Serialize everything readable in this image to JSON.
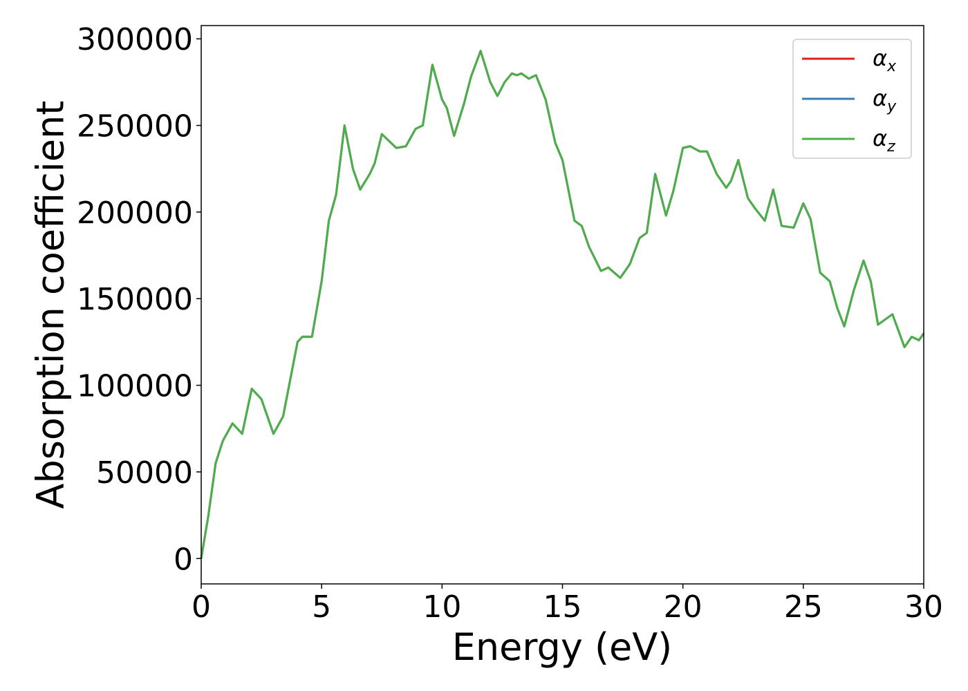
{
  "chart_data": {
    "type": "line",
    "x_label": "Energy (eV)",
    "y_label": "Absorption coefficient",
    "x": [
      0,
      0.3,
      0.6,
      0.9,
      1.3,
      1.7,
      2.1,
      2.5,
      3.0,
      3.4,
      4.0,
      4.2,
      4.6,
      5.0,
      5.3,
      5.6,
      5.95,
      6.3,
      6.6,
      7.0,
      7.2,
      7.5,
      7.8,
      8.1,
      8.5,
      8.9,
      9.2,
      9.6,
      10.0,
      10.2,
      10.5,
      10.9,
      11.2,
      11.6,
      12.0,
      12.3,
      12.6,
      12.9,
      13.1,
      13.3,
      13.6,
      13.9,
      14.3,
      14.7,
      15.0,
      15.5,
      15.8,
      16.1,
      16.6,
      16.9,
      17.4,
      17.8,
      18.2,
      18.5,
      18.85,
      19.3,
      19.6,
      20.0,
      20.3,
      20.7,
      21.0,
      21.4,
      21.8,
      22.0,
      22.3,
      22.7,
      23.0,
      23.4,
      23.75,
      24.1,
      24.6,
      25.0,
      25.3,
      25.7,
      26.1,
      26.4,
      26.7,
      27.1,
      27.5,
      27.8,
      28.1,
      28.7,
      29.2,
      29.5,
      29.8,
      30.0
    ],
    "series": [
      {
        "name": "αx",
        "color": "#e41a1c",
        "values": [
          0,
          25000,
          55000,
          68000,
          78000,
          72000,
          98000,
          92000,
          72000,
          82000,
          125000,
          128000,
          128000,
          160000,
          195000,
          210000,
          250000,
          225000,
          213000,
          222000,
          228000,
          245000,
          241000,
          237000,
          238000,
          248000,
          250000,
          285000,
          265000,
          260000,
          244000,
          262000,
          278000,
          293000,
          275000,
          267000,
          275000,
          280000,
          279000,
          280000,
          277000,
          279000,
          265000,
          240000,
          230000,
          195000,
          192000,
          180000,
          166000,
          168000,
          162000,
          170000,
          185000,
          188000,
          222000,
          198000,
          212000,
          237000,
          238000,
          235000,
          235000,
          222000,
          214000,
          218000,
          230000,
          208000,
          202000,
          195000,
          213000,
          192000,
          191000,
          205000,
          196000,
          165000,
          160000,
          145000,
          134000,
          155000,
          172000,
          160000,
          135000,
          141000,
          122000,
          128000,
          126000,
          130000
        ]
      },
      {
        "name": "αy",
        "color": "#377eb8",
        "values": [
          0,
          25000,
          55000,
          68000,
          78000,
          72000,
          98000,
          92000,
          72000,
          82000,
          125000,
          128000,
          128000,
          160000,
          195000,
          210000,
          250000,
          225000,
          213000,
          222000,
          228000,
          245000,
          241000,
          237000,
          238000,
          248000,
          250000,
          285000,
          265000,
          260000,
          244000,
          262000,
          278000,
          293000,
          275000,
          267000,
          275000,
          280000,
          279000,
          280000,
          277000,
          279000,
          265000,
          240000,
          230000,
          195000,
          192000,
          180000,
          166000,
          168000,
          162000,
          170000,
          185000,
          188000,
          222000,
          198000,
          212000,
          237000,
          238000,
          235000,
          235000,
          222000,
          214000,
          218000,
          230000,
          208000,
          202000,
          195000,
          213000,
          192000,
          191000,
          205000,
          196000,
          165000,
          160000,
          145000,
          134000,
          155000,
          172000,
          160000,
          135000,
          141000,
          122000,
          128000,
          126000,
          130000
        ]
      },
      {
        "name": "αz",
        "color": "#4daf4a",
        "values": [
          0,
          25000,
          55000,
          68000,
          78000,
          72000,
          98000,
          92000,
          72000,
          82000,
          125000,
          128000,
          128000,
          160000,
          195000,
          210000,
          250000,
          225000,
          213000,
          222000,
          228000,
          245000,
          241000,
          237000,
          238000,
          248000,
          250000,
          285000,
          265000,
          260000,
          244000,
          262000,
          278000,
          293000,
          275000,
          267000,
          275000,
          280000,
          279000,
          280000,
          277000,
          279000,
          265000,
          240000,
          230000,
          195000,
          192000,
          180000,
          166000,
          168000,
          162000,
          170000,
          185000,
          188000,
          222000,
          198000,
          212000,
          237000,
          238000,
          235000,
          235000,
          222000,
          214000,
          218000,
          230000,
          208000,
          202000,
          195000,
          213000,
          192000,
          191000,
          205000,
          196000,
          165000,
          160000,
          145000,
          134000,
          155000,
          172000,
          160000,
          135000,
          141000,
          122000,
          128000,
          126000,
          130000
        ]
      }
    ],
    "xlim": [
      0,
      30
    ],
    "xticks": [
      0,
      5,
      10,
      15,
      20,
      25,
      30
    ],
    "ylim": [
      -14650,
      307650
    ],
    "yticks": [
      0,
      50000,
      100000,
      150000,
      200000,
      250000,
      300000
    ],
    "grid": false,
    "legend": "upper right"
  }
}
